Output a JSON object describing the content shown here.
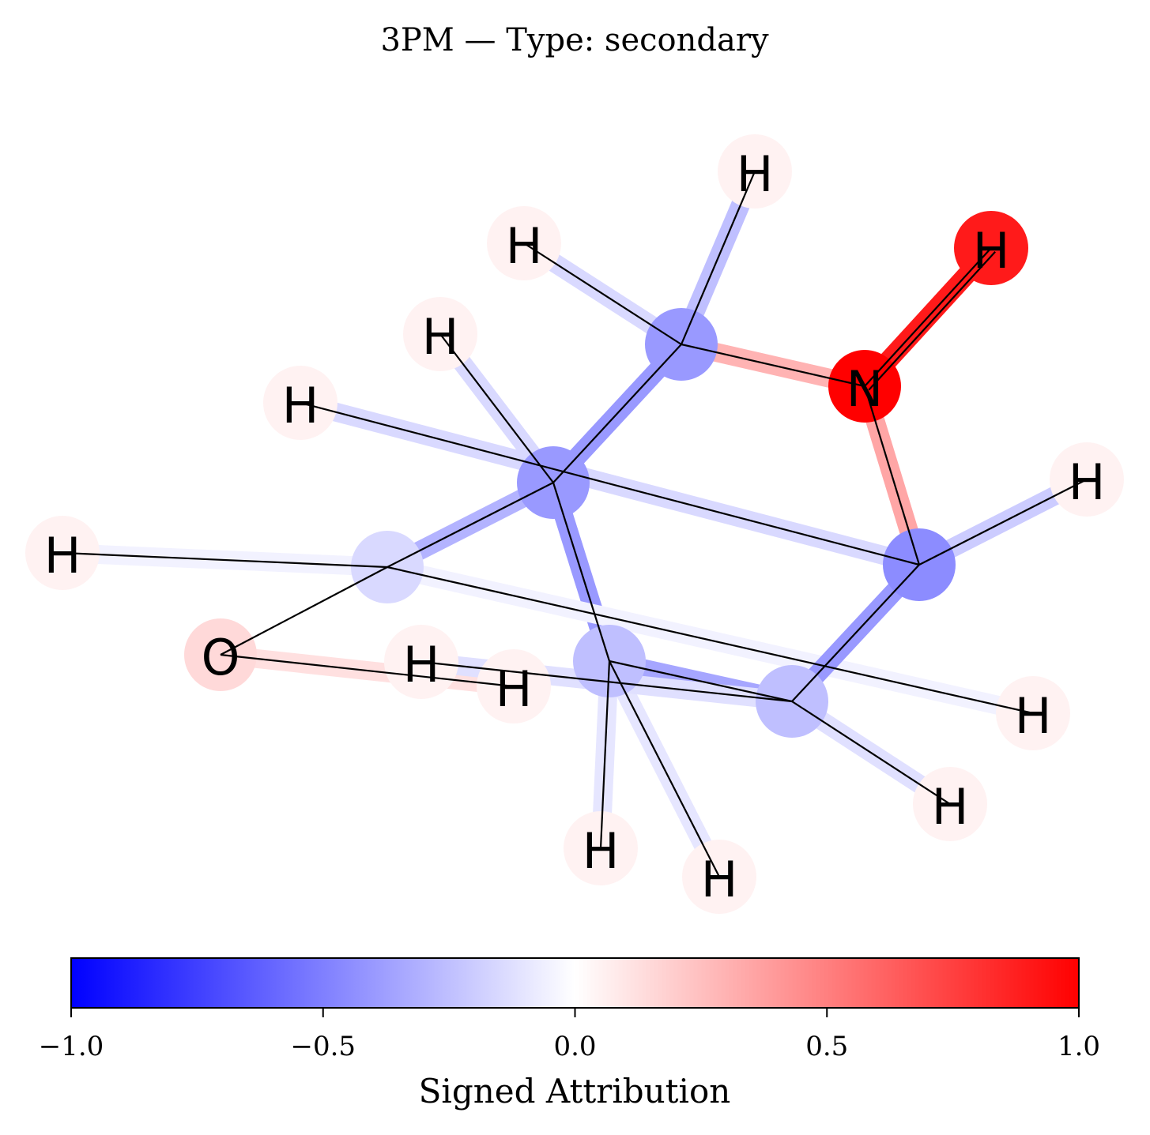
{
  "title": "3PM — Type: secondary",
  "molecule": {
    "atoms": [
      {
        "id": 0,
        "element": "H",
        "attribution": 0.05
      },
      {
        "id": 1,
        "element": "H",
        "attribution": 0.05
      },
      {
        "id": 2,
        "element": "H",
        "attribution": 0.9
      },
      {
        "id": 3,
        "element": "H",
        "attribution": 0.05
      },
      {
        "id": 4,
        "element": "C",
        "attribution": -0.4
      },
      {
        "id": 5,
        "element": "N",
        "attribution": 1.0
      },
      {
        "id": 6,
        "element": "H",
        "attribution": 0.05
      },
      {
        "id": 7,
        "element": "H",
        "attribution": 0.05
      },
      {
        "id": 8,
        "element": "C",
        "attribution": -0.4
      },
      {
        "id": 9,
        "element": "H",
        "attribution": 0.05
      },
      {
        "id": 10,
        "element": "C",
        "attribution": -0.45
      },
      {
        "id": 11,
        "element": "H",
        "attribution": 0.05
      },
      {
        "id": 12,
        "element": "C",
        "attribution": -0.15
      },
      {
        "id": 13,
        "element": "O",
        "attribution": 0.15
      },
      {
        "id": 14,
        "element": "H",
        "attribution": 0.05
      },
      {
        "id": 15,
        "element": "H",
        "attribution": 0.05
      },
      {
        "id": 16,
        "element": "C",
        "attribution": -0.25
      },
      {
        "id": 17,
        "element": "C",
        "attribution": -0.25
      },
      {
        "id": 18,
        "element": "H",
        "attribution": 0.05
      },
      {
        "id": 19,
        "element": "H",
        "attribution": 0.05
      },
      {
        "id": 20,
        "element": "H",
        "attribution": 0.05
      }
    ],
    "bonds": [
      {
        "a": 4,
        "b": 1,
        "attribution": -0.15
      },
      {
        "a": 4,
        "b": 0,
        "attribution": -0.25
      },
      {
        "a": 4,
        "b": 5,
        "attribution": 0.3
      },
      {
        "a": 5,
        "b": 2,
        "attribution": 0.9
      },
      {
        "a": 4,
        "b": 8,
        "attribution": -0.4
      },
      {
        "a": 8,
        "b": 3,
        "attribution": -0.15
      },
      {
        "a": 8,
        "b": 12,
        "attribution": -0.3
      },
      {
        "a": 8,
        "b": 16,
        "attribution": -0.4
      },
      {
        "a": 12,
        "b": 7,
        "attribution": -0.05
      },
      {
        "a": 12,
        "b": 15,
        "attribution": -0.05
      },
      {
        "a": 12,
        "b": 13,
        "attribution": 0.0
      },
      {
        "a": 13,
        "b": 14,
        "attribution": 0.12
      },
      {
        "a": 5,
        "b": 10,
        "attribution": 0.35
      },
      {
        "a": 10,
        "b": 6,
        "attribution": -0.15
      },
      {
        "a": 10,
        "b": 9,
        "attribution": -0.2
      },
      {
        "a": 10,
        "b": 17,
        "attribution": -0.4
      },
      {
        "a": 17,
        "b": 16,
        "attribution": -0.35
      },
      {
        "a": 16,
        "b": 18,
        "attribution": -0.1
      },
      {
        "a": 16,
        "b": 19,
        "attribution": -0.1
      },
      {
        "a": 17,
        "b": 20,
        "attribution": -0.12
      },
      {
        "a": 17,
        "b": 11,
        "attribution": -0.12
      }
    ]
  },
  "colorbar": {
    "label": "Signed Attribution",
    "min": -1.0,
    "max": 1.0,
    "ticks": [
      -1.0,
      -0.5,
      0.0,
      0.5,
      1.0
    ],
    "tick_labels": [
      "−1.0",
      "−0.5",
      "0.0",
      "0.5",
      "1.0"
    ],
    "cmap": "bwr",
    "color_low": "#0000ff",
    "color_mid": "#ffffff",
    "color_high": "#ff0000"
  }
}
